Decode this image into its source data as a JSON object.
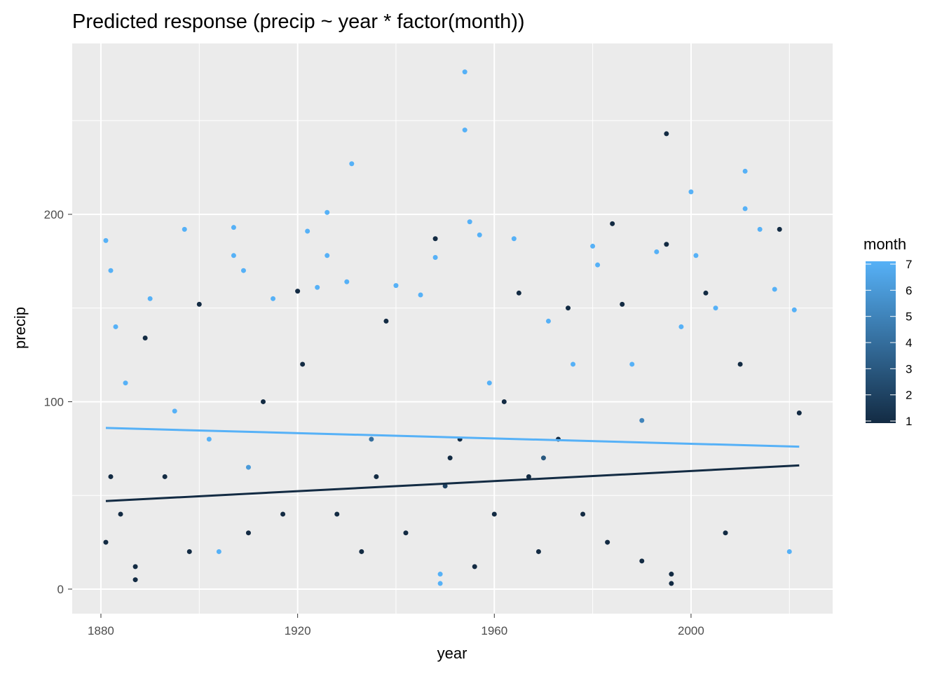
{
  "chart_data": {
    "type": "scatter",
    "title": "Predicted response (precip ~ year * factor(month))",
    "xlabel": "year",
    "ylabel": "precip",
    "xlim": [
      1874.16,
      2028.8
    ],
    "ylim": [
      -13.1,
      291.2
    ],
    "xticks": [
      1880,
      1920,
      1960,
      2000
    ],
    "yticks": [
      0,
      100,
      200
    ],
    "xminor": [
      1900,
      1940,
      1980,
      2020
    ],
    "yminor": [
      50,
      150,
      250
    ],
    "grid": true,
    "colorbar": {
      "title": "month",
      "lim": [
        1,
        7
      ],
      "ticks": [
        1,
        2,
        3,
        4,
        5,
        6,
        7
      ],
      "low": "#132B43",
      "high": "#56B1F7"
    },
    "x": [
      1881,
      1881,
      1882,
      1882,
      1883,
      1884,
      1885,
      1887,
      1887,
      1889,
      1890,
      1893,
      1895,
      1897,
      1898,
      1900,
      1902,
      1904,
      1907,
      1907,
      1909,
      1910,
      1913,
      1915,
      1917,
      1920,
      1921,
      1922,
      1924,
      1926,
      1926,
      1928,
      1930,
      1931,
      1933,
      1936,
      1938,
      1940,
      1942,
      1945,
      1948,
      1948,
      1949,
      1949,
      1951,
      1953,
      1954,
      1954,
      1955,
      1957,
      1956,
      1959,
      1960,
      1962,
      1964,
      1965,
      1967,
      1969,
      1971,
      1973,
      1975,
      1976,
      1978,
      1980,
      1981,
      1983,
      1984,
      1986,
      1988,
      1990,
      1993,
      1995,
      1995,
      1996,
      1996,
      1998,
      2000,
      2001,
      2003,
      2005,
      2007,
      2010,
      2011,
      2011,
      2014,
      2017,
      2018,
      2020,
      2021,
      2022,
      1935,
      1970,
      1990,
      1910,
      1950
    ],
    "y": [
      186,
      25,
      170,
      60,
      140,
      40,
      110,
      5,
      12,
      134,
      155,
      60,
      95,
      192,
      20,
      152,
      80,
      20,
      193,
      178,
      170,
      30,
      100,
      155,
      40,
      159,
      120,
      191,
      161,
      201,
      178,
      40,
      164,
      227,
      20,
      60,
      143,
      162,
      30,
      157,
      187,
      177,
      8,
      3,
      70,
      80,
      276,
      245,
      196,
      189,
      12,
      110,
      40,
      100,
      187,
      158,
      60,
      20,
      143,
      80,
      150,
      120,
      40,
      183,
      173,
      25,
      195,
      152,
      120,
      15,
      180,
      243,
      184,
      3,
      8,
      140,
      212,
      178,
      158,
      150,
      30,
      120,
      223,
      203,
      192,
      160,
      192,
      20,
      149,
      94,
      80,
      70,
      90,
      65,
      55
    ],
    "month": [
      7,
      1,
      7,
      1,
      7,
      1,
      7,
      1,
      1,
      1,
      7,
      1,
      7,
      7,
      1,
      1,
      7,
      7,
      7,
      7,
      7,
      1,
      1,
      7,
      1,
      1,
      1,
      7,
      7,
      7,
      7,
      1,
      7,
      7,
      1,
      1,
      1,
      7,
      1,
      7,
      1,
      7,
      7,
      7,
      1,
      1,
      7,
      7,
      7,
      7,
      1,
      7,
      1,
      1,
      7,
      1,
      1,
      1,
      7,
      1,
      1,
      7,
      1,
      7,
      7,
      1,
      1,
      1,
      7,
      1,
      7,
      1,
      1,
      1,
      1,
      7,
      7,
      7,
      1,
      7,
      1,
      1,
      7,
      7,
      7,
      7,
      1,
      7,
      7,
      1,
      4,
      3,
      5,
      6,
      2
    ],
    "lines": [
      {
        "month": 1,
        "x": [
          1881,
          2022
        ],
        "y": [
          47,
          66
        ]
      },
      {
        "month": 7,
        "x": [
          1881,
          2022
        ],
        "y": [
          86,
          76
        ]
      }
    ]
  }
}
